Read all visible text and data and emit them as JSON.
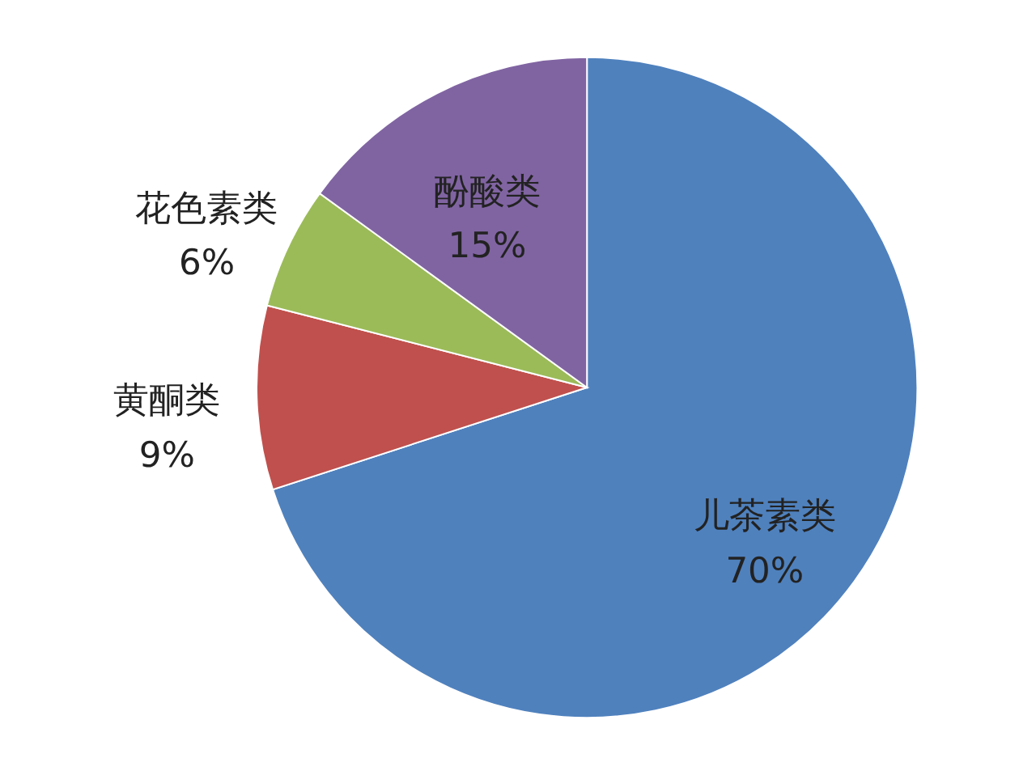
{
  "chart_data": {
    "type": "pie",
    "categories": [
      "儿茶素类",
      "黄酮类",
      "花色素类",
      "酚酸类"
    ],
    "values": [
      70,
      9,
      6,
      15
    ],
    "value_labels": [
      "70%",
      "9%",
      "6%",
      "15%"
    ],
    "colors": [
      "#4f81bd",
      "#c0504d",
      "#9bbb59",
      "#8064a2"
    ]
  }
}
